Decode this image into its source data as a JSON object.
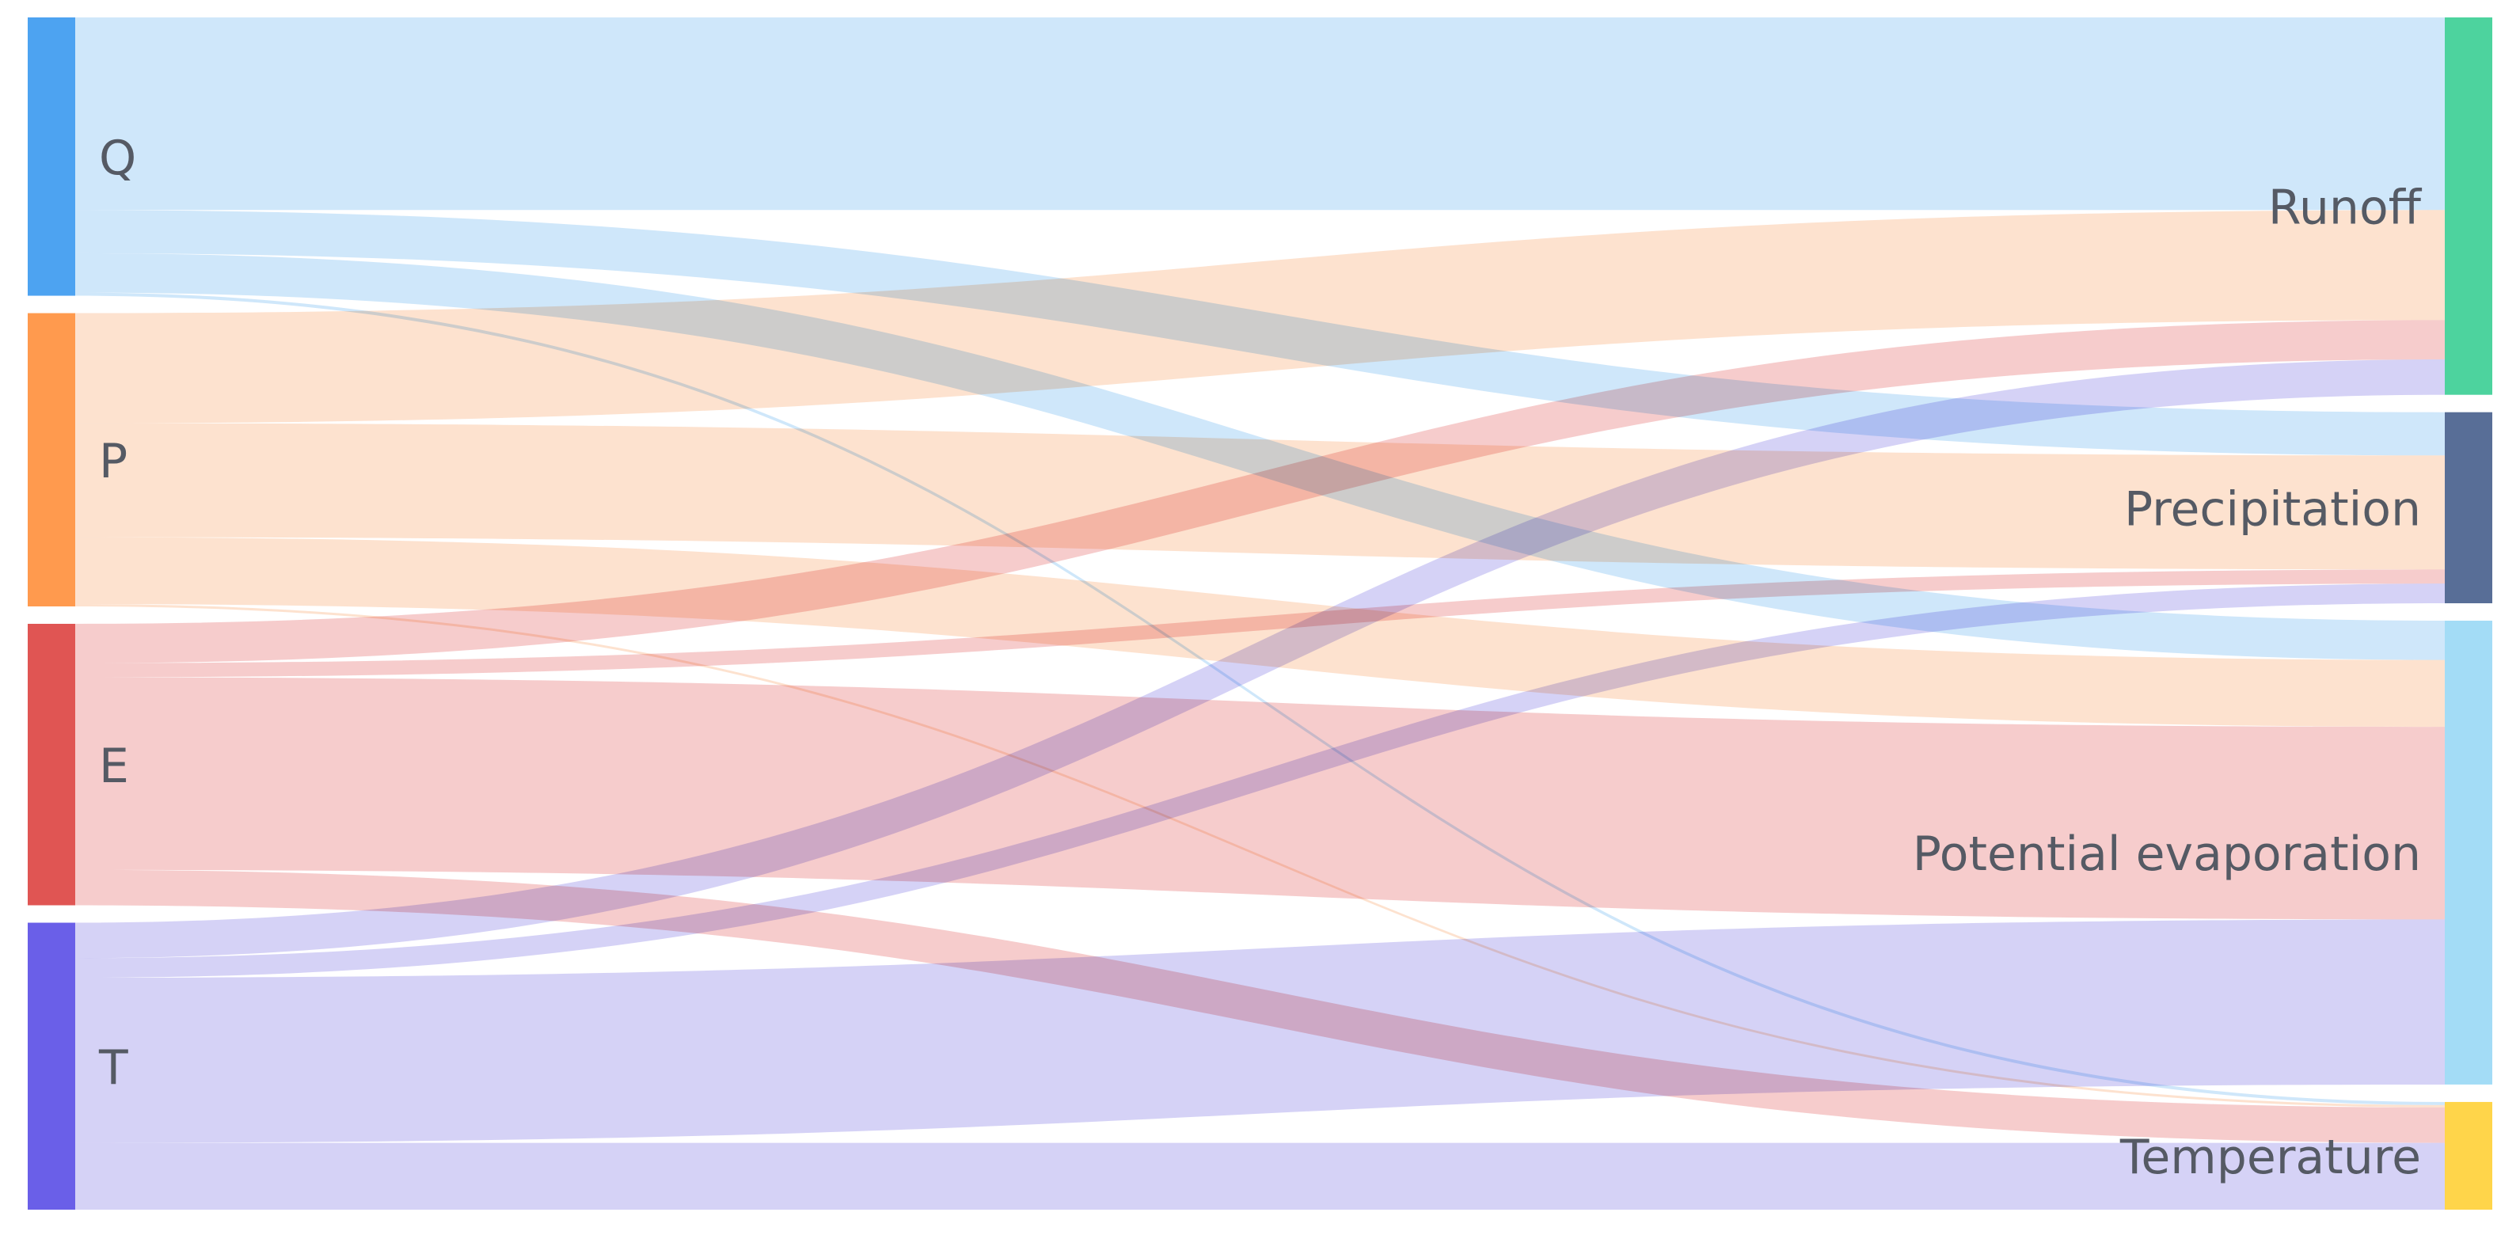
{
  "diagram": {
    "type": "sankey",
    "sources": [
      {
        "id": "Q",
        "label": "Q",
        "color": "#4da3f1"
      },
      {
        "id": "P",
        "label": "P",
        "color": "#ff9a4e"
      },
      {
        "id": "E",
        "label": "E",
        "color": "#e05553"
      },
      {
        "id": "T",
        "label": "T",
        "color": "#6a5fe8"
      }
    ],
    "targets": [
      {
        "id": "Runoff",
        "label": "Runoff",
        "color": "#4dd39e"
      },
      {
        "id": "Precipitation",
        "label": "Precipitation",
        "color": "#586e97"
      },
      {
        "id": "Potential evaporation",
        "label": "Potential evaporation",
        "color": "#a3dcf6"
      },
      {
        "id": "Temperature",
        "label": "Temperature",
        "color": "#ffd54a"
      }
    ],
    "link_colors": {
      "Q": "#cce6fa",
      "P": "#fde0cc",
      "E": "#f6c9c9",
      "T": "#d3d0f6"
    },
    "flows": [
      {
        "source": "Q",
        "target": "Runoff",
        "value": 245
      },
      {
        "source": "Q",
        "target": "Potential evaporation",
        "value": 50
      },
      {
        "source": "Q",
        "target": "Precipitation",
        "value": 55
      },
      {
        "source": "Q",
        "target": "Temperature",
        "value": 4
      },
      {
        "source": "P",
        "target": "Runoff",
        "value": 140
      },
      {
        "source": "P",
        "target": "Precipitation",
        "value": 145
      },
      {
        "source": "P",
        "target": "Potential evaporation",
        "value": 85
      },
      {
        "source": "P",
        "target": "Temperature",
        "value": 3
      },
      {
        "source": "E",
        "target": "Runoff",
        "value": 50
      },
      {
        "source": "E",
        "target": "Precipitation",
        "value": 18
      },
      {
        "source": "E",
        "target": "Potential evaporation",
        "value": 245
      },
      {
        "source": "E",
        "target": "Temperature",
        "value": 45
      },
      {
        "source": "T",
        "target": "Runoff",
        "value": 45
      },
      {
        "source": "T",
        "target": "Precipitation",
        "value": 25
      },
      {
        "source": "T",
        "target": "Potential evaporation",
        "value": 210
      },
      {
        "source": "T",
        "target": "Temperature",
        "value": 85
      }
    ]
  }
}
